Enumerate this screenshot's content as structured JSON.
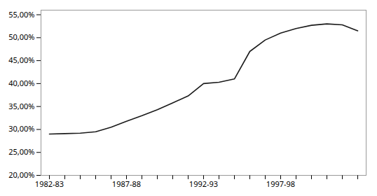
{
  "chart_data": {
    "type": "line",
    "categories": [
      "1982-83",
      null,
      null,
      null,
      null,
      "1987-88",
      null,
      null,
      null,
      null,
      "1992-93",
      null,
      null,
      null,
      null,
      "1997-98",
      null,
      null,
      null,
      null,
      null
    ],
    "values": [
      0.29,
      0.291,
      0.292,
      0.295,
      0.305,
      0.318,
      0.33,
      0.343,
      0.358,
      0.373,
      0.4,
      0.403,
      0.41,
      0.47,
      0.495,
      0.51,
      0.52,
      0.527,
      0.53,
      0.528,
      0.515
    ],
    "color": "#1a1a1a",
    "ylim": [
      0.2,
      0.56
    ],
    "yticks": [
      {
        "value": 0.2,
        "label": "20,00%"
      },
      {
        "value": 0.25,
        "label": "25,00%"
      },
      {
        "value": 0.3,
        "label": "30,00%"
      },
      {
        "value": 0.35,
        "label": "35,00%"
      },
      {
        "value": 0.4,
        "label": "40,00%"
      },
      {
        "value": 0.45,
        "label": "45,00%"
      },
      {
        "value": 0.5,
        "label": "50,00%"
      },
      {
        "value": 0.55,
        "label": "55,00%"
      }
    ],
    "grid": false
  }
}
